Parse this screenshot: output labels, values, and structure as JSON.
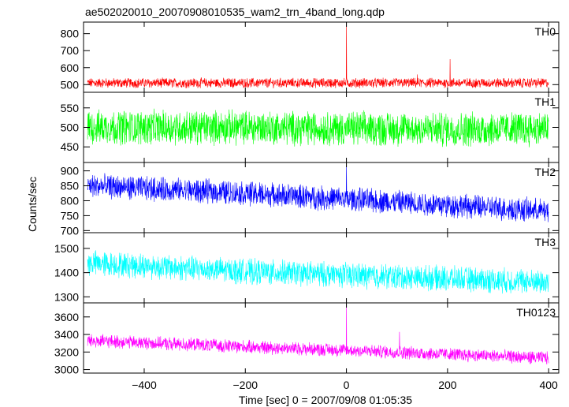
{
  "chart_data": {
    "type": "line",
    "title": "ae502020010_20070908010535_wam2_trn_4band_long.qdp",
    "xlabel": "Time [sec] 0 = 2007/09/08 01:05:35",
    "ylabel": "Counts/sec",
    "xlim": [
      -520,
      420
    ],
    "xticks": [
      -400,
      -200,
      0,
      200,
      400
    ],
    "grid": false,
    "series": [
      {
        "name": "TH0",
        "color": "#ff0000",
        "ylim": [
          455,
          868
        ],
        "yticks": [
          500,
          600,
          700,
          800
        ],
        "baseline": [
          [
            -512,
            510
          ],
          [
            -200,
            510
          ],
          [
            0,
            510
          ],
          [
            200,
            510
          ],
          [
            400,
            510
          ]
        ],
        "noise_amplitude": 25,
        "spikes": [
          [
            0,
            860
          ],
          [
            140,
            560
          ],
          [
            205,
            650
          ]
        ]
      },
      {
        "name": "TH1",
        "color": "#00ff00",
        "ylim": [
          410,
          590
        ],
        "yticks": [
          450,
          500,
          550
        ],
        "baseline": [
          [
            -512,
            500
          ],
          [
            -200,
            500
          ],
          [
            0,
            497
          ],
          [
            200,
            495
          ],
          [
            400,
            497
          ]
        ],
        "noise_amplitude": 38,
        "spikes": []
      },
      {
        "name": "TH2",
        "color": "#0000ff",
        "ylim": [
          693,
          928
        ],
        "yticks": [
          700,
          750,
          800,
          850,
          900
        ],
        "baseline": [
          [
            -512,
            850
          ],
          [
            -200,
            825
          ],
          [
            0,
            805
          ],
          [
            200,
            785
          ],
          [
            400,
            765
          ]
        ],
        "noise_amplitude": 35,
        "spikes": [
          [
            0,
            918
          ]
        ]
      },
      {
        "name": "TH3",
        "color": "#00ffff",
        "ylim": [
          1275,
          1565
        ],
        "yticks": [
          1300,
          1400,
          1500
        ],
        "baseline": [
          [
            -512,
            1440
          ],
          [
            -200,
            1405
          ],
          [
            0,
            1390
          ],
          [
            200,
            1375
          ],
          [
            400,
            1360
          ]
        ],
        "noise_amplitude": 45,
        "spikes": []
      },
      {
        "name": "TH0123",
        "color": "#ff00ff",
        "ylim": [
          2960,
          3760
        ],
        "yticks": [
          3000,
          3200,
          3400,
          3600
        ],
        "baseline": [
          [
            -512,
            3330
          ],
          [
            -200,
            3260
          ],
          [
            0,
            3220
          ],
          [
            200,
            3175
          ],
          [
            400,
            3130
          ]
        ],
        "noise_amplitude": 65,
        "spikes": [
          [
            0,
            3740
          ],
          [
            105,
            3430
          ]
        ]
      }
    ]
  }
}
